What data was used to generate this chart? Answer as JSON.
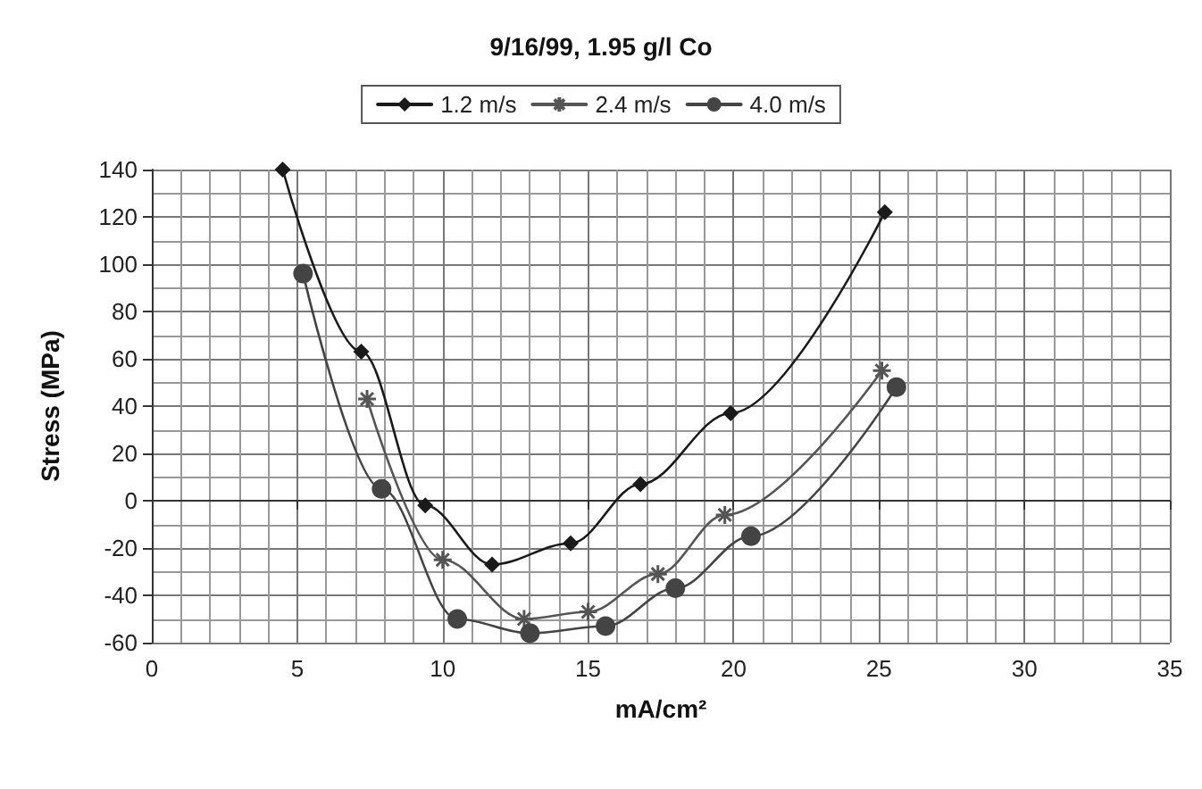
{
  "chart_data": {
    "type": "line",
    "title": "9/16/99, 1.95 g/l Co",
    "xlabel": "mA/cm²",
    "ylabel": "Stress (MPa)",
    "xlim": [
      0,
      35
    ],
    "xticks": [
      0,
      5,
      10,
      15,
      20,
      25,
      30,
      35
    ],
    "ylim": [
      -60,
      140
    ],
    "yticks": [
      -60,
      -40,
      -20,
      0,
      20,
      40,
      60,
      80,
      100,
      120,
      140
    ],
    "grid": true,
    "legend": "top",
    "line_style": "solid",
    "series": [
      {
        "name": "1.2 m/s",
        "color": "#1a1a1a",
        "marker": "diamond",
        "x": [
          4.5,
          7.2,
          9.4,
          11.7,
          14.4,
          16.8,
          19.9,
          25.2
        ],
        "values": [
          140,
          63,
          -2,
          -27,
          -18,
          7,
          37,
          122
        ]
      },
      {
        "name": "2.4 m/s",
        "color": "#555555",
        "marker": "cross",
        "x": [
          7.4,
          10,
          12.8,
          15,
          17.4,
          19.7,
          25.1
        ],
        "values": [
          43,
          -25,
          -50,
          -47,
          -31,
          -6,
          55
        ]
      },
      {
        "name": "4.0 m/s",
        "color": "#444444",
        "marker": "circle",
        "x": [
          5.2,
          7.9,
          10.5,
          13,
          15.6,
          18,
          20.6,
          25.6
        ],
        "values": [
          96,
          5,
          -50,
          -56,
          -53,
          -37,
          -15,
          48
        ]
      }
    ]
  }
}
